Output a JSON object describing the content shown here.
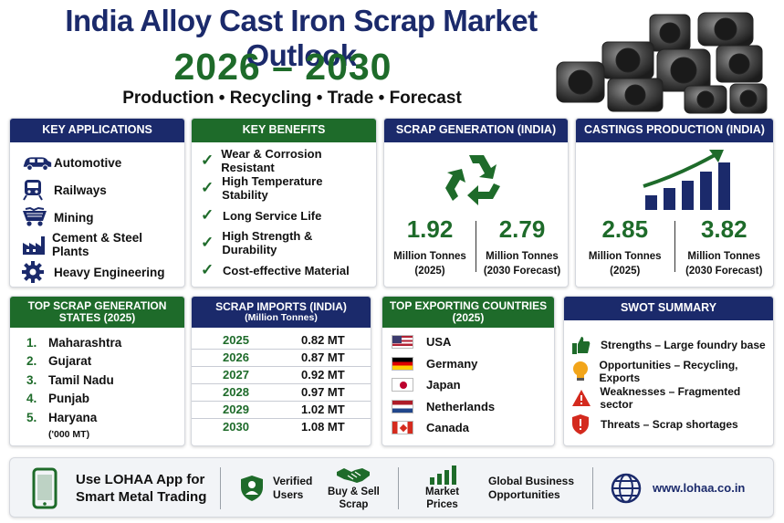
{
  "header": {
    "title": "India Alloy Cast Iron Scrap Market Outlook",
    "years": "2026 – 2030",
    "subtitle": "Production • Recycling • Trade • Forecast"
  },
  "colors": {
    "navy": "#1b2a6b",
    "green": "#1e6b2a"
  },
  "applications": {
    "heading": "KEY APPLICATIONS",
    "items": [
      {
        "label": "Automotive",
        "icon": "car-icon"
      },
      {
        "label": "Railways",
        "icon": "train-icon"
      },
      {
        "label": "Mining",
        "icon": "mining-cart-icon"
      },
      {
        "label": "Cement & Steel Plants",
        "icon": "factory-icon"
      },
      {
        "label": "Heavy Engineering",
        "icon": "gear-icon"
      }
    ]
  },
  "benefits": {
    "heading": "KEY BENEFITS",
    "items": [
      "Wear & Corrosion Resistant",
      "High Temperature Stability",
      "Long Service Life",
      "High Strength & Durability",
      "Cost-effective Material"
    ]
  },
  "scrap_generation": {
    "heading": "SCRAP GENERATION (INDIA)",
    "icon": "recycle-icon",
    "stats": [
      {
        "value": "1.92",
        "unit": "Million Tonnes",
        "year": "(2025)"
      },
      {
        "value": "2.79",
        "unit": "Million Tonnes",
        "year": "(2030 Forecast)"
      }
    ]
  },
  "castings": {
    "heading": "CASTINGS PRODUCTION (INDIA)",
    "icon": "growth-chart-icon",
    "stats": [
      {
        "value": "2.85",
        "unit": "Million Tonnes",
        "year": "(2025)"
      },
      {
        "value": "3.82",
        "unit": "Million Tonnes",
        "year": "(2030 Forecast)"
      }
    ]
  },
  "states": {
    "heading": "TOP SCRAP GENERATION STATES (2025)",
    "items": [
      {
        "rank": "1.",
        "name": "Maharashtra"
      },
      {
        "rank": "2.",
        "name": "Gujarat"
      },
      {
        "rank": "3.",
        "name": "Tamil Nadu"
      },
      {
        "rank": "4.",
        "name": "Punjab"
      },
      {
        "rank": "5.",
        "name": "Haryana"
      }
    ],
    "note": "('000 MT)"
  },
  "imports": {
    "heading": "SCRAP IMPORTS (INDIA)",
    "subheading": "(Million Tonnes)",
    "rows": [
      {
        "year": "2025",
        "value": "0.82 MT"
      },
      {
        "year": "2026",
        "value": "0.87 MT"
      },
      {
        "year": "2027",
        "value": "0.92 MT"
      },
      {
        "year": "2028",
        "value": "0.97 MT"
      },
      {
        "year": "2029",
        "value": "1.02 MT"
      },
      {
        "year": "2030",
        "value": "1.08 MT"
      }
    ]
  },
  "exporters": {
    "heading": "TOP EXPORTING COUNTRIES",
    "subheading": "(2025)",
    "items": [
      {
        "name": "USA",
        "flag": "usa-flag-icon"
      },
      {
        "name": "Germany",
        "flag": "germany-flag-icon"
      },
      {
        "name": "Japan",
        "flag": "japan-flag-icon"
      },
      {
        "name": "Netherlands",
        "flag": "netherlands-flag-icon"
      },
      {
        "name": "Canada",
        "flag": "canada-flag-icon"
      }
    ]
  },
  "swot": {
    "heading": "SWOT SUMMARY",
    "items": [
      {
        "text": "Strengths – Large foundry base",
        "icon": "thumbs-up-icon"
      },
      {
        "text": "Opportunities – Recycling, Exports",
        "icon": "lightbulb-icon"
      },
      {
        "text": "Weaknesses – Fragmented sector",
        "icon": "warning-icon"
      },
      {
        "text": "Threats – Scrap shortages",
        "icon": "shield-alert-icon"
      }
    ]
  },
  "footer": {
    "app_line1": "Use LOHAA App for",
    "app_line2": "Smart Metal Trading",
    "verified_line1": "Verified",
    "verified_line2": "Users",
    "buysell_line1": "Buy & Sell",
    "buysell_line2": "Scrap",
    "prices_line1": "Market",
    "prices_line2": "Prices",
    "global_line1": "Global Business",
    "global_line2": "Opportunities",
    "website": "www.lohaa.co.in"
  }
}
